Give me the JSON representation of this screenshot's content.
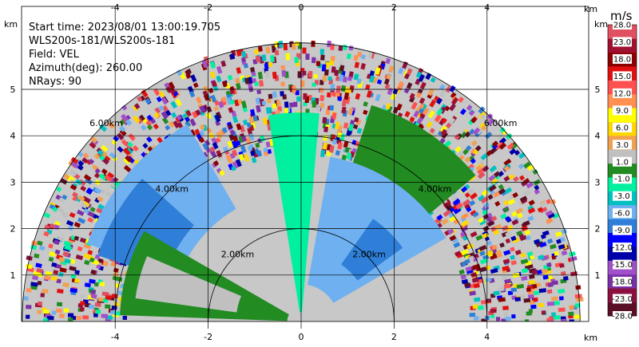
{
  "chart_data": {
    "type": "heatmap",
    "subtype": "radar-rhi-sector",
    "info_lines": [
      "Start time: 2023/08/01 13:00:19.705",
      "WLS200s-181/WLS200s-181",
      "Field: VEL",
      "Azimuth(deg): 260.00",
      "NRays: 90"
    ],
    "x_axis": {
      "unit_label": "km",
      "ticks": [
        -4,
        -2,
        0,
        2,
        4
      ],
      "xlim": [
        -6.1,
        6.1
      ]
    },
    "y_axis": {
      "unit_label": "km",
      "ticks": [
        1,
        2,
        3,
        4,
        5
      ],
      "ylim": [
        0,
        6
      ]
    },
    "range_rings": [
      {
        "radius_km": 2,
        "label": "2.00km"
      },
      {
        "radius_km": 4,
        "label": "4.00km"
      },
      {
        "radius_km": 6,
        "label": "6.00km"
      }
    ],
    "grid": true,
    "colorbar": {
      "unit": "m/s",
      "position": "right",
      "tick_labels": [
        "-28.0",
        "-23.0",
        "-18.0",
        "-15.0",
        "-12.0",
        "-9.0",
        "-6.0",
        "-3.0",
        "-1.0",
        "1.0",
        "3.0",
        "6.0",
        "9.0",
        "12.0",
        "15.0",
        "18.0",
        "23.0",
        "28.0"
      ],
      "colors": [
        "#5a0f26",
        "#8b1040",
        "#7b2fa8",
        "#a050c8",
        "#0000aa",
        "#0000ff",
        "#2f7fd8",
        "#6fb0f0",
        "#00c0c0",
        "#00f0a0",
        "#228b22",
        "#c0c0c0",
        "#f0a050",
        "#ffd700",
        "#ffff00",
        "#ff9050",
        "#ff5050",
        "#e01010",
        "#8b0000",
        "#a01030",
        "#e05060"
      ]
    },
    "velocity_regions": [
      {
        "label": "left upper band",
        "value_ms": -3.0
      },
      {
        "label": "left mid band",
        "value_ms": -6.0
      },
      {
        "label": "left lower band",
        "value_ms": 3.0
      },
      {
        "label": "left core",
        "value_ms": 6.0
      },
      {
        "label": "vertical center",
        "value_ms": 0.0
      },
      {
        "label": "right upper band",
        "value_ms": 3.0
      },
      {
        "label": "right mid band",
        "value_ms": -3.0
      },
      {
        "label": "right core",
        "value_ms": -6.0
      },
      {
        "label": "far range",
        "value_ms": "noise"
      }
    ]
  }
}
